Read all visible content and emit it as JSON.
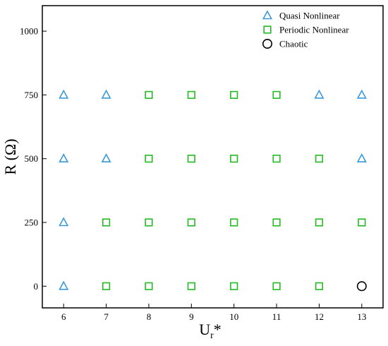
{
  "chart_data": {
    "type": "scatter",
    "xlabel": "U",
    "xlabel_sub": "r",
    "xlabel_sup": "*",
    "ylabel": "R (Ω)",
    "xlim": [
      5.5,
      13.5
    ],
    "ylim": [
      -85,
      1100
    ],
    "x_ticks": [
      6,
      7,
      8,
      9,
      10,
      11,
      12,
      13
    ],
    "y_ticks": [
      0,
      250,
      500,
      750,
      1000
    ],
    "x_tick_labels": [
      "6",
      "7",
      "8",
      "9",
      "10",
      "11",
      "12",
      "13"
    ],
    "y_tick_labels": [
      "0",
      "250",
      "500",
      "750",
      "1000"
    ],
    "grid": false,
    "legend_position": "top-right",
    "series": [
      {
        "name": "Quasi Nonlinear",
        "marker": "triangle",
        "color": "#3a9ad9",
        "points": [
          [
            6,
            0
          ],
          [
            6,
            250
          ],
          [
            6,
            500
          ],
          [
            6,
            750
          ],
          [
            7,
            500
          ],
          [
            7,
            750
          ],
          [
            12,
            750
          ],
          [
            13,
            500
          ],
          [
            13,
            750
          ]
        ]
      },
      {
        "name": "Periodic Nonlinear",
        "marker": "square",
        "color": "#22bb22",
        "points": [
          [
            7,
            0
          ],
          [
            8,
            0
          ],
          [
            9,
            0
          ],
          [
            10,
            0
          ],
          [
            11,
            0
          ],
          [
            12,
            0
          ],
          [
            7,
            250
          ],
          [
            8,
            250
          ],
          [
            9,
            250
          ],
          [
            10,
            250
          ],
          [
            11,
            250
          ],
          [
            12,
            250
          ],
          [
            13,
            250
          ],
          [
            8,
            500
          ],
          [
            9,
            500
          ],
          [
            10,
            500
          ],
          [
            11,
            500
          ],
          [
            12,
            500
          ],
          [
            8,
            750
          ],
          [
            9,
            750
          ],
          [
            10,
            750
          ],
          [
            11,
            750
          ]
        ]
      },
      {
        "name": "Chaotic",
        "marker": "circle",
        "color": "#000000",
        "points": [
          [
            13,
            0
          ]
        ]
      }
    ]
  }
}
